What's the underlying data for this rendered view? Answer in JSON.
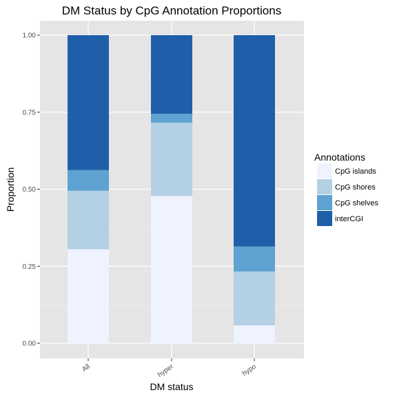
{
  "chart_data": {
    "type": "bar",
    "stacked": true,
    "title": "DM Status by CpG Annotation Proportions",
    "xlabel": "DM status",
    "ylabel": "Proportion",
    "categories": [
      "All",
      "hyper",
      "hypo"
    ],
    "ylim": [
      0,
      1
    ],
    "yticks": [
      0.0,
      0.25,
      0.5,
      0.75,
      1.0
    ],
    "ytick_labels": [
      "0.00",
      "0.25",
      "0.50",
      "0.75",
      "1.00"
    ],
    "grid": true,
    "legend": {
      "title": "Annotations",
      "placement": "right"
    },
    "series": [
      {
        "name": "CpG islands",
        "color": "#eff3ff",
        "values": [
          0.305,
          0.478,
          0.058
        ]
      },
      {
        "name": "CpG shores",
        "color": "#b3d0e4",
        "values": [
          0.19,
          0.238,
          0.175
        ]
      },
      {
        "name": "CpG shelves",
        "color": "#5da2d0",
        "values": [
          0.067,
          0.029,
          0.081
        ]
      },
      {
        "name": "interCGI",
        "color": "#1f5fa9",
        "values": [
          0.438,
          0.255,
          0.686
        ]
      }
    ]
  }
}
